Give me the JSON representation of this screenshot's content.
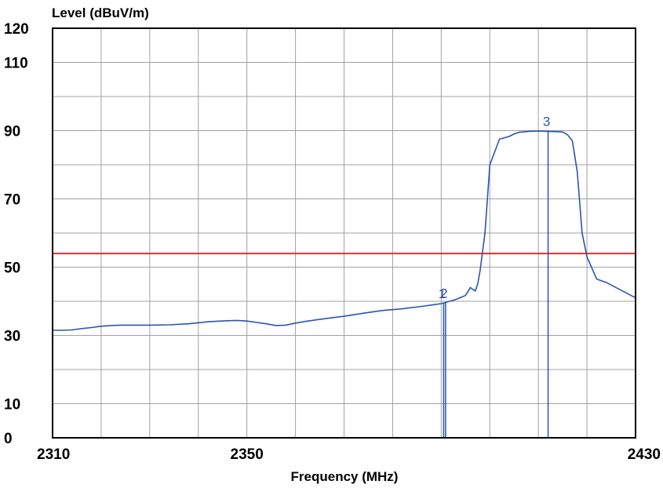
{
  "chart_data": {
    "type": "line",
    "title": "",
    "xlabel": "Frequency (MHz)",
    "ylabel": "Level (dBuV/m)",
    "xlim": [
      2310,
      2430
    ],
    "ylim": [
      0,
      120
    ],
    "x_ticks": [
      "2310",
      "2350",
      "2430"
    ],
    "y_ticks": [
      "120",
      "110",
      "90",
      "70",
      "50",
      "30",
      "10",
      "0"
    ],
    "grid": true,
    "colors": {
      "trace": "#2b55b0",
      "limit": "#e03030",
      "grid": "#a0a0a0",
      "frame": "#000000"
    },
    "series": [
      {
        "x": [
          2310,
          2312,
          2314,
          2316,
          2318,
          2320,
          2322,
          2324,
          2326,
          2328,
          2330,
          2334,
          2338,
          2342,
          2346,
          2348,
          2350,
          2352,
          2354,
          2356,
          2358,
          2360,
          2362,
          2366,
          2370,
          2374,
          2378,
          2382,
          2386,
          2388,
          2390,
          2393,
          2395,
          2396,
          2397,
          2397.5,
          2398,
          2399,
          2400,
          2402,
          2404,
          2405,
          2406,
          2408,
          2410,
          2412,
          2414,
          2415,
          2416,
          2417,
          2418,
          2419,
          2420,
          2422,
          2424,
          2426,
          2428,
          2430
        ],
        "y": [
          31.5,
          31.5,
          31.6,
          32,
          32.3,
          32.7,
          32.9,
          33,
          33,
          33,
          33,
          33.1,
          33.4,
          34,
          34.3,
          34.4,
          34.2,
          33.8,
          33.4,
          32.9,
          33,
          33.6,
          34.1,
          34.9,
          35.6,
          36.5,
          37.3,
          37.8,
          38.5,
          38.9,
          39.3,
          40.5,
          41.7,
          44,
          43,
          45,
          49,
          60,
          80,
          87.5,
          88.3,
          89,
          89.5,
          89.8,
          89.9,
          89.8,
          89.7,
          89.6,
          88.8,
          87,
          78,
          60,
          53,
          46.5,
          45.5,
          44,
          42.5,
          41
        ]
      }
    ],
    "limit_line": {
      "y": 54
    },
    "markers": [
      {
        "label": "1",
        "x": 2390.5,
        "y": 39.5
      },
      {
        "label": "2",
        "x": 2390.9,
        "y": 39.6
      },
      {
        "label": "3",
        "x": 2412,
        "y": 90
      }
    ]
  }
}
